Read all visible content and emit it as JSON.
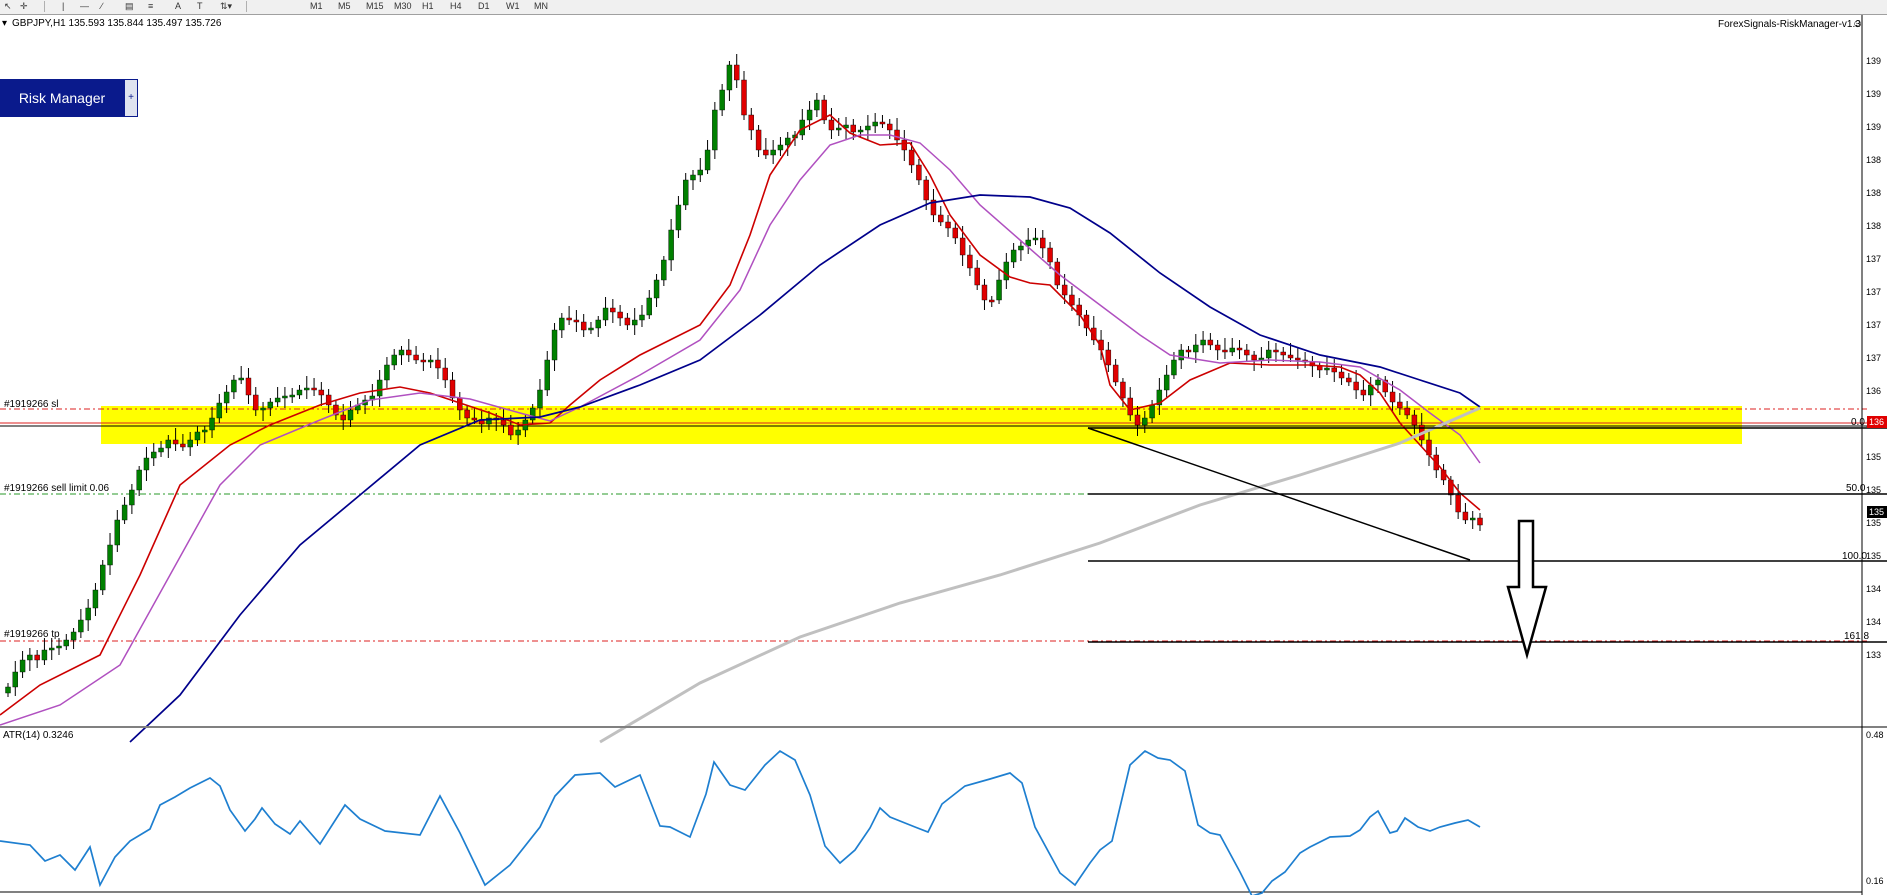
{
  "toolbar": {
    "timeframes": [
      "M1",
      "M5",
      "M15",
      "M30",
      "H1",
      "H4",
      "D1",
      "W1",
      "MN"
    ],
    "tools": [
      "cursor-icon",
      "crosshair-icon",
      "vertical-line-icon",
      "horizontal-line-icon",
      "trendline-icon",
      "channel-icon",
      "fibonacci-icon",
      "text-icon",
      "label-icon",
      "arrows-icon"
    ],
    "text_tool_label": "A",
    "label_tool_label": "T"
  },
  "chart": {
    "symbol_header": "GBPJPY,H1  135.593 135.844 135.497 135.726",
    "ea_label": "ForexSignals-RiskManager-v1.3",
    "risk_manager_button": "Risk Manager",
    "risk_manager_plus": "+",
    "order_labels": {
      "sl": "#1919266 sl",
      "sell_limit": "#1919266 sell limit 0.06",
      "tp": "#1919266 tp"
    },
    "fib_labels": [
      "0.0",
      "50.0",
      "100.0",
      "161.8"
    ],
    "price_axis_ticks": [
      "139",
      "139",
      "139",
      "138",
      "138",
      "138",
      "137",
      "137",
      "137",
      "137",
      "136",
      "136",
      "135",
      "135",
      "135",
      "135",
      "134",
      "134",
      "133"
    ],
    "current_price_tag": "135",
    "sl_price_tag": "136",
    "colors": {
      "bull_candle": "#008000",
      "bear_candle": "#e00000",
      "zone": "#ffff00",
      "ma_fast": "#cc0000",
      "ma_mid": "#b050c0",
      "ma_slow": "#00008b",
      "ma_200": "#c0c0c0",
      "atr_line": "#1e7fd0",
      "order_line": "#dd2222",
      "sell_limit_line": "#2a9a2a"
    }
  },
  "atr": {
    "label": "ATR(14) 0.3246",
    "axis_top": "0.48",
    "axis_bottom": "0.16"
  }
}
